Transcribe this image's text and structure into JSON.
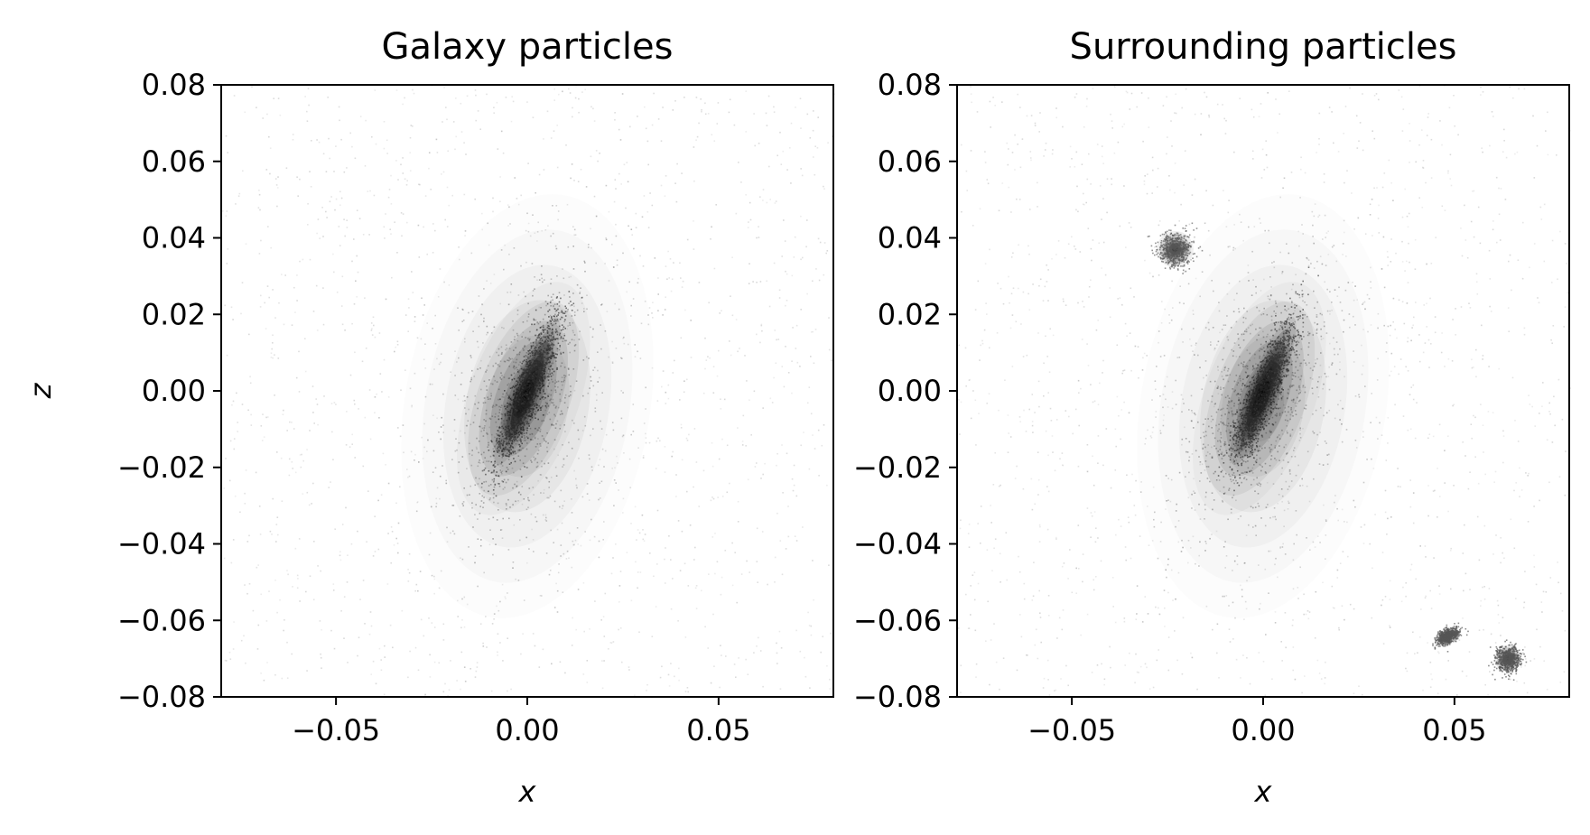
{
  "chart_data": [
    {
      "type": "heatmap",
      "title": "Galaxy particles",
      "xlabel": "x",
      "ylabel": "z",
      "xlim": [
        -0.08,
        0.08
      ],
      "ylim": [
        -0.08,
        0.08
      ],
      "xticks": [
        -0.05,
        0.0,
        0.05
      ],
      "xtick_labels": [
        "−0.05",
        "0.00",
        "0.05"
      ],
      "yticks": [
        0.08,
        0.06,
        0.04,
        0.02,
        0.0,
        -0.02,
        -0.04,
        -0.06,
        -0.08
      ],
      "ytick_labels": [
        "0.08",
        "0.06",
        "0.04",
        "0.02",
        "0.00",
        "−0.02",
        "−0.04",
        "−0.06",
        "−0.08"
      ],
      "colormap": "greys",
      "background_color": "#ffffff",
      "features": [
        {
          "kind": "disk",
          "center": [
            0.0,
            0.0
          ],
          "semi_axes": [
            0.0025,
            0.013
          ],
          "angle_deg": 22,
          "density": 1.0
        },
        {
          "kind": "bulge",
          "center": [
            -0.001,
            -0.002
          ],
          "semi_axes": [
            0.009,
            0.02
          ],
          "angle_deg": 20,
          "density": 0.35
        },
        {
          "kind": "halo",
          "center": [
            0.0,
            -0.004
          ],
          "semi_axes": [
            0.02,
            0.035
          ],
          "angle_deg": 10,
          "density": 0.12
        }
      ]
    },
    {
      "type": "heatmap",
      "title": "Surrounding particles",
      "xlabel": "x",
      "ylabel": "",
      "xlim": [
        -0.08,
        0.08
      ],
      "ylim": [
        -0.08,
        0.08
      ],
      "xticks": [
        -0.05,
        0.0,
        0.05
      ],
      "xtick_labels": [
        "−0.05",
        "0.00",
        "0.05"
      ],
      "yticks": [
        0.08,
        0.06,
        0.04,
        0.02,
        0.0,
        -0.02,
        -0.04,
        -0.06,
        -0.08
      ],
      "ytick_labels": [
        "0.08",
        "0.06",
        "0.04",
        "0.02",
        "0.00",
        "−0.02",
        "−0.04",
        "−0.06",
        "−0.08"
      ],
      "colormap": "greys",
      "background_color": "#ffffff",
      "features": [
        {
          "kind": "disk",
          "center": [
            0.0,
            0.0
          ],
          "semi_axes": [
            0.0025,
            0.013
          ],
          "angle_deg": 22,
          "density": 1.0
        },
        {
          "kind": "bulge",
          "center": [
            -0.001,
            -0.002
          ],
          "semi_axes": [
            0.009,
            0.02
          ],
          "angle_deg": 20,
          "density": 0.35
        },
        {
          "kind": "halo",
          "center": [
            0.0,
            -0.004
          ],
          "semi_axes": [
            0.02,
            0.035
          ],
          "angle_deg": 10,
          "density": 0.12
        },
        {
          "kind": "satellite",
          "center": [
            -0.023,
            0.037
          ],
          "semi_axes": [
            0.003,
            0.003
          ],
          "angle_deg": 0,
          "density": 0.75
        },
        {
          "kind": "satellite",
          "center": [
            0.048,
            -0.064
          ],
          "semi_axes": [
            0.0022,
            0.0012
          ],
          "angle_deg": -30,
          "density": 0.85
        },
        {
          "kind": "satellite",
          "center": [
            0.064,
            -0.07
          ],
          "semi_axes": [
            0.0022,
            0.0022
          ],
          "angle_deg": 0,
          "density": 0.85
        }
      ]
    }
  ]
}
